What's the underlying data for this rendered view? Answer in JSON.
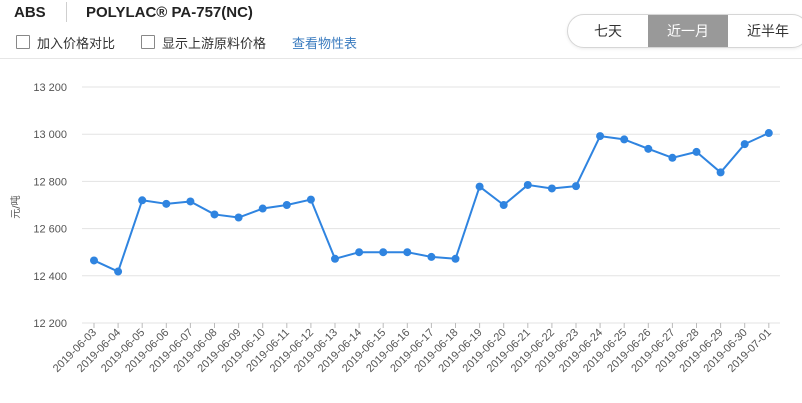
{
  "header": {
    "category": "ABS",
    "product": "POLYLAC® PA-757(NC)",
    "compare_label": "加入价格对比",
    "upstream_label": "显示上游原料价格",
    "properties_link": "查看物性表",
    "range_tabs": [
      {
        "label": "七天",
        "active": false
      },
      {
        "label": "近一月",
        "active": true
      },
      {
        "label": "近半年",
        "active": false
      }
    ]
  },
  "colors": {
    "series": "#2f84e0",
    "grid": "#e3e3e3",
    "axis_text": "#555555",
    "active_tab": "#999999"
  },
  "chart_data": {
    "type": "line",
    "ylabel": "元/吨",
    "ylim": [
      12200,
      13200
    ],
    "yticks": [
      12200,
      12400,
      12600,
      12800,
      13000,
      13200
    ],
    "ytick_labels": [
      "12 200",
      "12 400",
      "12 600",
      "12 800",
      "13 000",
      "13 200"
    ],
    "grid": true,
    "x": [
      "2019-06-03",
      "2019-06-04",
      "2019-06-05",
      "2019-06-06",
      "2019-06-07",
      "2019-06-08",
      "2019-06-09",
      "2019-06-10",
      "2019-06-11",
      "2019-06-12",
      "2019-06-13",
      "2019-06-14",
      "2019-06-15",
      "2019-06-16",
      "2019-06-17",
      "2019-06-18",
      "2019-06-19",
      "2019-06-20",
      "2019-06-21",
      "2019-06-22",
      "2019-06-23",
      "2019-06-24",
      "2019-06-25",
      "2019-06-26",
      "2019-06-27",
      "2019-06-28",
      "2019-06-29",
      "2019-06-30",
      "2019-07-01"
    ],
    "series": [
      {
        "values": [
          12465,
          12418,
          12720,
          12705,
          12715,
          12660,
          12647,
          12685,
          12700,
          12723,
          12472,
          12500,
          12500,
          12500,
          12480,
          12472,
          12778,
          12700,
          12785,
          12770,
          12780,
          12992,
          12978,
          12938,
          12900,
          12925,
          12838,
          12958,
          13005
        ]
      }
    ]
  }
}
